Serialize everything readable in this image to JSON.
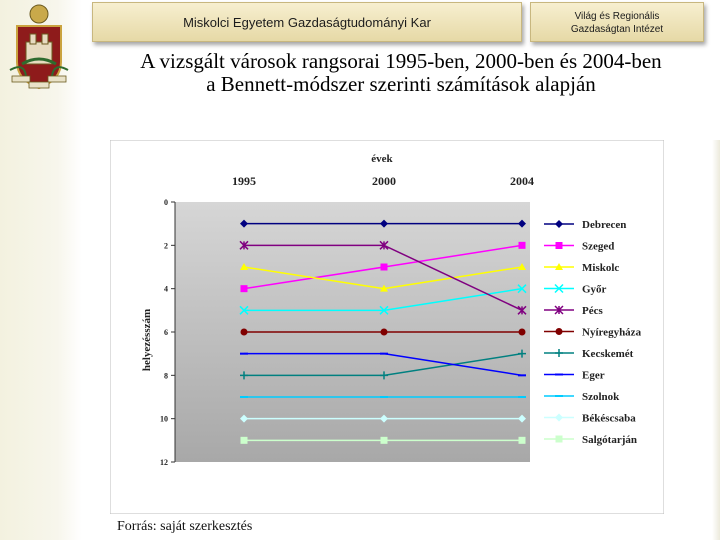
{
  "header": {
    "faculty": "Miskolci Egyetem Gazdaságtudományi Kar",
    "institute_line1": "Világ és Regionális",
    "institute_line2": "Gazdaságtan Intézet"
  },
  "slide": {
    "title_line1": "A vizsgált városok rangsorai 1995-ben, 2000-ben és 2004-ben",
    "title_line2": "a Bennett-módszer szerinti számítások alapján",
    "source": "Forrás: saját szerkesztés"
  },
  "colors": {
    "plot_bg_top": "#d4d4d4",
    "plot_bg_bottom": "#a9a9a9",
    "chart_bg": "#ffffff",
    "header_bg": "#efe4b8"
  },
  "chart_data": {
    "type": "line",
    "title": "évek",
    "xlabel": "",
    "ylabel": "helyezésszám",
    "x": [
      "1995",
      "2000",
      "2004"
    ],
    "ylim": [
      0,
      12
    ],
    "y_inverted": true,
    "y_ticks": [
      "0",
      "2",
      "4",
      "6",
      "8",
      "10",
      "12"
    ],
    "grid": false,
    "legend_position": "right",
    "series": [
      {
        "name": "Debrecen",
        "values": [
          1,
          1,
          1
        ],
        "color": "#000080",
        "marker": "diamond"
      },
      {
        "name": "Szeged",
        "values": [
          4,
          3,
          2
        ],
        "color": "#ff00ff",
        "marker": "square"
      },
      {
        "name": "Miskolc",
        "values": [
          3,
          4,
          3
        ],
        "color": "#ffff00",
        "marker": "triangle"
      },
      {
        "name": "Győr",
        "values": [
          5,
          5,
          4
        ],
        "color": "#00ffff",
        "marker": "x"
      },
      {
        "name": "Pécs",
        "values": [
          2,
          2,
          5
        ],
        "color": "#800080",
        "marker": "star"
      },
      {
        "name": "Nyíregyháza",
        "values": [
          6,
          6,
          6
        ],
        "color": "#800000",
        "marker": "circle"
      },
      {
        "name": "Kecskemét",
        "values": [
          8,
          8,
          7
        ],
        "color": "#008080",
        "marker": "plus"
      },
      {
        "name": "Eger",
        "values": [
          7,
          7,
          8
        ],
        "color": "#0000ff",
        "marker": "dash"
      },
      {
        "name": "Szolnok",
        "values": [
          9,
          9,
          9
        ],
        "color": "#00ccff",
        "marker": "dash"
      },
      {
        "name": "Békéscsaba",
        "values": [
          10,
          10,
          10
        ],
        "color": "#ccffff",
        "marker": "diamond"
      },
      {
        "name": "Salgótarján",
        "values": [
          11,
          11,
          11
        ],
        "color": "#ccffcc",
        "marker": "square"
      }
    ]
  }
}
